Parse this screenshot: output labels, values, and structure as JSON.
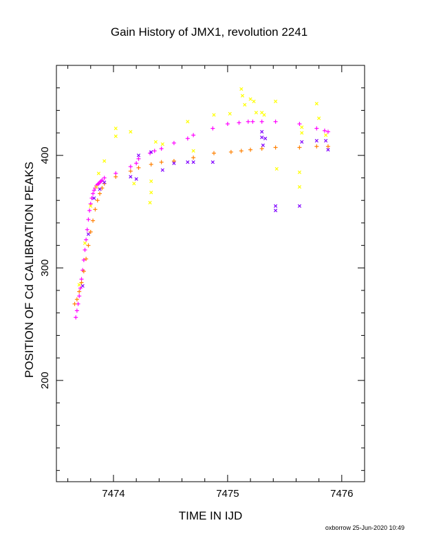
{
  "chart_data": {
    "type": "scatter",
    "title": "Gain History of JMX1, revolution 2241",
    "xlabel": "TIME IN IJD",
    "ylabel": "POSITION OF Cd CALIBRATION PEAKS",
    "xlim": [
      7473.5,
      7476.2
    ],
    "ylim": [
      110,
      480
    ],
    "x_ticks": [
      7474,
      7475,
      7476
    ],
    "y_ticks": [
      200,
      300,
      400
    ],
    "grid": false,
    "footer": "oxborrow 25-Jun-2020 10:49",
    "colors": {
      "magenta": "#ff00ff",
      "orange": "#ff8000",
      "yellow": "#ffff00",
      "purple": "#8000ff"
    },
    "series": [
      {
        "color": "magenta",
        "marker": "plus",
        "points": [
          [
            7473.67,
            256
          ],
          [
            7473.68,
            262
          ],
          [
            7473.69,
            268
          ],
          [
            7473.7,
            275
          ],
          [
            7473.71,
            282
          ],
          [
            7473.72,
            290
          ],
          [
            7473.73,
            298
          ],
          [
            7473.74,
            307
          ],
          [
            7473.75,
            316
          ],
          [
            7473.76,
            325
          ],
          [
            7473.77,
            334
          ],
          [
            7473.78,
            343
          ],
          [
            7473.79,
            351
          ],
          [
            7473.8,
            357
          ],
          [
            7473.81,
            362
          ],
          [
            7473.82,
            366
          ],
          [
            7473.83,
            369
          ],
          [
            7473.84,
            371
          ],
          [
            7473.85,
            373
          ],
          [
            7473.86,
            374
          ],
          [
            7473.87,
            375
          ],
          [
            7473.88,
            376
          ],
          [
            7473.89,
            377
          ],
          [
            7473.9,
            378
          ],
          [
            7473.92,
            380
          ],
          [
            7474.02,
            384
          ],
          [
            7474.15,
            390
          ],
          [
            7474.2,
            393
          ],
          [
            7474.22,
            397
          ],
          [
            7474.32,
            402
          ],
          [
            7474.36,
            404
          ],
          [
            7474.42,
            406
          ],
          [
            7474.53,
            411
          ],
          [
            7474.65,
            415
          ],
          [
            7474.7,
            418
          ],
          [
            7474.87,
            424
          ],
          [
            7475.0,
            428
          ],
          [
            7475.1,
            429
          ],
          [
            7475.18,
            430
          ],
          [
            7475.22,
            430
          ],
          [
            7475.3,
            430
          ],
          [
            7475.42,
            430
          ],
          [
            7475.63,
            428
          ],
          [
            7475.78,
            424
          ],
          [
            7475.85,
            422
          ],
          [
            7475.88,
            421
          ]
        ]
      },
      {
        "color": "orange",
        "marker": "plus",
        "points": [
          [
            7473.66,
            268
          ],
          [
            7473.68,
            272
          ],
          [
            7473.7,
            279
          ],
          [
            7473.72,
            287
          ],
          [
            7473.74,
            297
          ],
          [
            7473.76,
            308
          ],
          [
            7473.78,
            320
          ],
          [
            7473.8,
            332
          ],
          [
            7473.82,
            342
          ],
          [
            7473.84,
            352
          ],
          [
            7473.86,
            360
          ],
          [
            7473.88,
            366
          ],
          [
            7473.9,
            371
          ],
          [
            7473.92,
            375
          ],
          [
            7474.02,
            381
          ],
          [
            7474.15,
            386
          ],
          [
            7474.22,
            389
          ],
          [
            7474.33,
            392
          ],
          [
            7474.42,
            394
          ],
          [
            7474.53,
            395
          ],
          [
            7474.7,
            398
          ],
          [
            7474.88,
            402
          ],
          [
            7475.03,
            403
          ],
          [
            7475.12,
            404
          ],
          [
            7475.2,
            405
          ],
          [
            7475.3,
            406
          ],
          [
            7475.42,
            407
          ],
          [
            7475.63,
            407
          ],
          [
            7475.78,
            408
          ],
          [
            7475.88,
            408
          ]
        ]
      },
      {
        "color": "yellow",
        "marker": "cross",
        "points": [
          [
            7473.7,
            285
          ],
          [
            7473.75,
            322
          ],
          [
            7473.8,
            355
          ],
          [
            7473.85,
            372
          ],
          [
            7473.87,
            384
          ],
          [
            7473.92,
            395
          ],
          [
            7474.02,
            424
          ],
          [
            7474.02,
            417
          ],
          [
            7474.15,
            421
          ],
          [
            7474.18,
            375
          ],
          [
            7474.32,
            358
          ],
          [
            7474.33,
            377
          ],
          [
            7474.33,
            367
          ],
          [
            7474.37,
            412
          ],
          [
            7474.43,
            410
          ],
          [
            7474.65,
            430
          ],
          [
            7474.7,
            404
          ],
          [
            7474.88,
            436
          ],
          [
            7475.02,
            437
          ],
          [
            7475.12,
            459
          ],
          [
            7475.13,
            453
          ],
          [
            7475.15,
            445
          ],
          [
            7475.2,
            450
          ],
          [
            7475.23,
            448
          ],
          [
            7475.25,
            438
          ],
          [
            7475.3,
            438
          ],
          [
            7475.32,
            436
          ],
          [
            7475.42,
            448
          ],
          [
            7475.43,
            388
          ],
          [
            7475.63,
            385
          ],
          [
            7475.63,
            372
          ],
          [
            7475.65,
            420
          ],
          [
            7475.65,
            425
          ],
          [
            7475.78,
            446
          ],
          [
            7475.8,
            433
          ],
          [
            7475.86,
            418
          ]
        ]
      },
      {
        "color": "purple",
        "marker": "cross",
        "points": [
          [
            7473.73,
            284
          ],
          [
            7473.78,
            330
          ],
          [
            7473.83,
            362
          ],
          [
            7473.88,
            370
          ],
          [
            7473.92,
            376
          ],
          [
            7474.15,
            381
          ],
          [
            7474.2,
            379
          ],
          [
            7474.22,
            400
          ],
          [
            7474.33,
            403
          ],
          [
            7474.43,
            387
          ],
          [
            7474.53,
            393
          ],
          [
            7474.65,
            394
          ],
          [
            7474.7,
            394
          ],
          [
            7474.87,
            394
          ],
          [
            7475.3,
            421
          ],
          [
            7475.3,
            416
          ],
          [
            7475.33,
            415
          ],
          [
            7475.31,
            409
          ],
          [
            7475.42,
            355
          ],
          [
            7475.42,
            351
          ],
          [
            7475.63,
            355
          ],
          [
            7475.65,
            412
          ],
          [
            7475.78,
            413
          ],
          [
            7475.86,
            413
          ],
          [
            7475.88,
            405
          ]
        ]
      }
    ]
  }
}
